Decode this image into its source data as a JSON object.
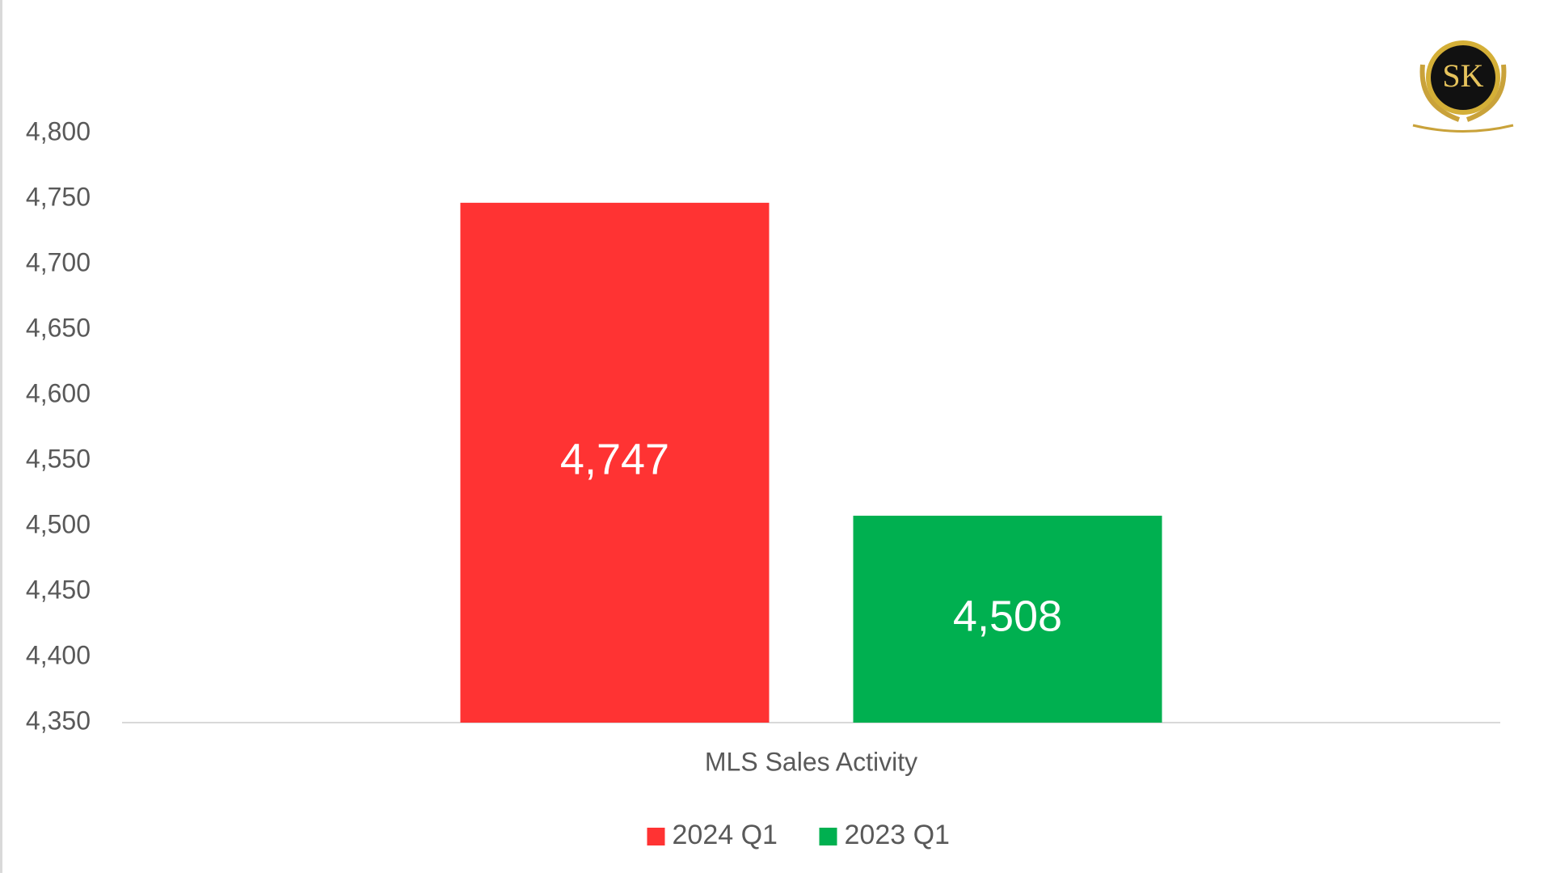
{
  "chart_data": {
    "type": "bar",
    "categories": [
      "MLS Sales Activity"
    ],
    "series": [
      {
        "name": "2024 Q1",
        "color": "#ff3333",
        "values": [
          4747
        ],
        "value_labels": [
          "4,747"
        ]
      },
      {
        "name": "2023 Q1",
        "color": "#00b050",
        "values": [
          4508
        ],
        "value_labels": [
          "4,508"
        ]
      }
    ],
    "ylim": [
      4350,
      4800
    ],
    "yticks": [
      {
        "value": 4350,
        "label": "4,350"
      },
      {
        "value": 4400,
        "label": "4,400"
      },
      {
        "value": 4450,
        "label": "4,450"
      },
      {
        "value": 4500,
        "label": "4,500"
      },
      {
        "value": 4550,
        "label": "4,550"
      },
      {
        "value": 4600,
        "label": "4,600"
      },
      {
        "value": 4650,
        "label": "4,650"
      },
      {
        "value": 4700,
        "label": "4,700"
      },
      {
        "value": 4750,
        "label": "4,750"
      },
      {
        "value": 4800,
        "label": "4,800"
      }
    ],
    "grid": false,
    "legend": "bottom"
  },
  "logo": {
    "text": "SK"
  }
}
